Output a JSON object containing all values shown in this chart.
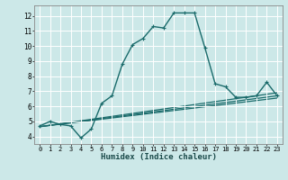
{
  "xlabel": "Humidex (Indice chaleur)",
  "background_color": "#cce8e8",
  "grid_color": "#ffffff",
  "line_color": "#1a6b6b",
  "xlim": [
    -0.5,
    23.5
  ],
  "ylim": [
    3.5,
    12.7
  ],
  "xtick_labels": [
    "0",
    "1",
    "2",
    "3",
    "4",
    "5",
    "6",
    "7",
    "8",
    "9",
    "10",
    "11",
    "12",
    "13",
    "14",
    "15",
    "16",
    "17",
    "18",
    "19",
    "20",
    "21",
    "22",
    "23"
  ],
  "xtick_vals": [
    0,
    1,
    2,
    3,
    4,
    5,
    6,
    7,
    8,
    9,
    10,
    11,
    12,
    13,
    14,
    15,
    16,
    17,
    18,
    19,
    20,
    21,
    22,
    23
  ],
  "ytick_vals": [
    4,
    5,
    6,
    7,
    8,
    9,
    10,
    11,
    12
  ],
  "series_main": {
    "x": [
      0,
      1,
      2,
      3,
      4,
      5,
      6,
      7,
      8,
      9,
      10,
      11,
      12,
      13,
      14,
      15,
      16,
      17,
      18,
      19,
      20,
      21,
      22,
      23
    ],
    "y": [
      4.7,
      5.0,
      4.8,
      4.7,
      3.9,
      4.5,
      6.2,
      6.7,
      8.8,
      10.1,
      10.5,
      11.3,
      11.2,
      12.2,
      12.2,
      12.2,
      9.9,
      7.5,
      7.3,
      6.6,
      6.6,
      6.7,
      7.6,
      6.7
    ]
  },
  "series_lines": [
    {
      "x": [
        0,
        23
      ],
      "y": [
        4.65,
        6.55
      ]
    },
    {
      "x": [
        0,
        23
      ],
      "y": [
        4.65,
        6.7
      ]
    },
    {
      "x": [
        0,
        23
      ],
      "y": [
        4.65,
        6.9
      ]
    }
  ]
}
